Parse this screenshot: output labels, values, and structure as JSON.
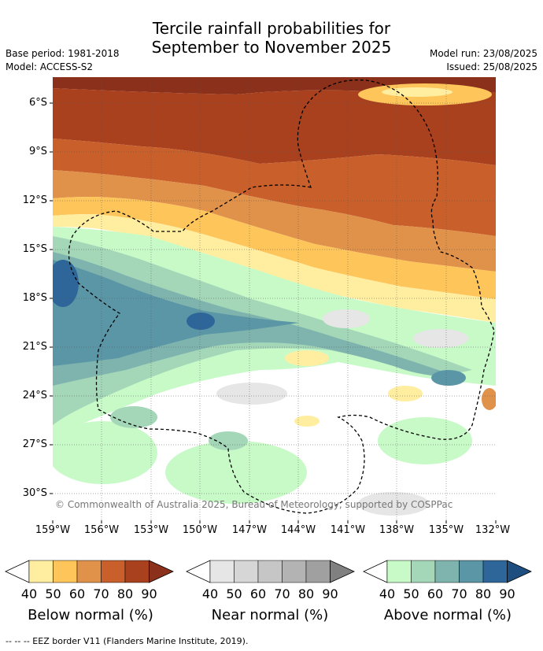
{
  "title_line1": "Tercile rainfall probabilities for",
  "title_line2": "September to November 2025",
  "base_period": "Base period: 1981-2018",
  "model": "Model: ACCESS-S2",
  "model_run": "Model run: 23/08/2025",
  "issued": "Issued: 25/08/2025",
  "copyright": "© Commonwealth of Australia 2025, Bureau of Meteorology, supported by COSPPac",
  "lat_labels": [
    "6°S",
    "9°S",
    "12°S",
    "15°S",
    "18°S",
    "21°S",
    "24°S",
    "27°S",
    "30°S"
  ],
  "lon_labels": [
    "159°W",
    "156°W",
    "153°W",
    "150°W",
    "147°W",
    "144°W",
    "141°W",
    "138°W",
    "135°W",
    "132°W"
  ],
  "colorbars": [
    {
      "title": "Below normal (%)",
      "ticks": [
        "40",
        "50",
        "60",
        "70",
        "80",
        "90"
      ],
      "colors": [
        "#ffeea0",
        "#fec55b",
        "#e0914a",
        "#c9602c",
        "#a9401e",
        "#8b301a"
      ]
    },
    {
      "title": "Near normal (%)",
      "ticks": [
        "40",
        "50",
        "60",
        "70",
        "80",
        "90"
      ],
      "colors": [
        "#e6e6e6",
        "#d6d6d6",
        "#c6c6c6",
        "#b3b3b3",
        "#a0a0a0",
        "#808080"
      ]
    },
    {
      "title": "Above normal (%)",
      "ticks": [
        "40",
        "50",
        "60",
        "70",
        "80",
        "90"
      ],
      "colors": [
        "#c8fac8",
        "#a4d7b8",
        "#7fb4ae",
        "#5b96a6",
        "#2f6699",
        "#1e4e80"
      ]
    }
  ],
  "footnote": "--  --  -- EEZ border V11 (Flanders Marine Institute, 2019)."
}
